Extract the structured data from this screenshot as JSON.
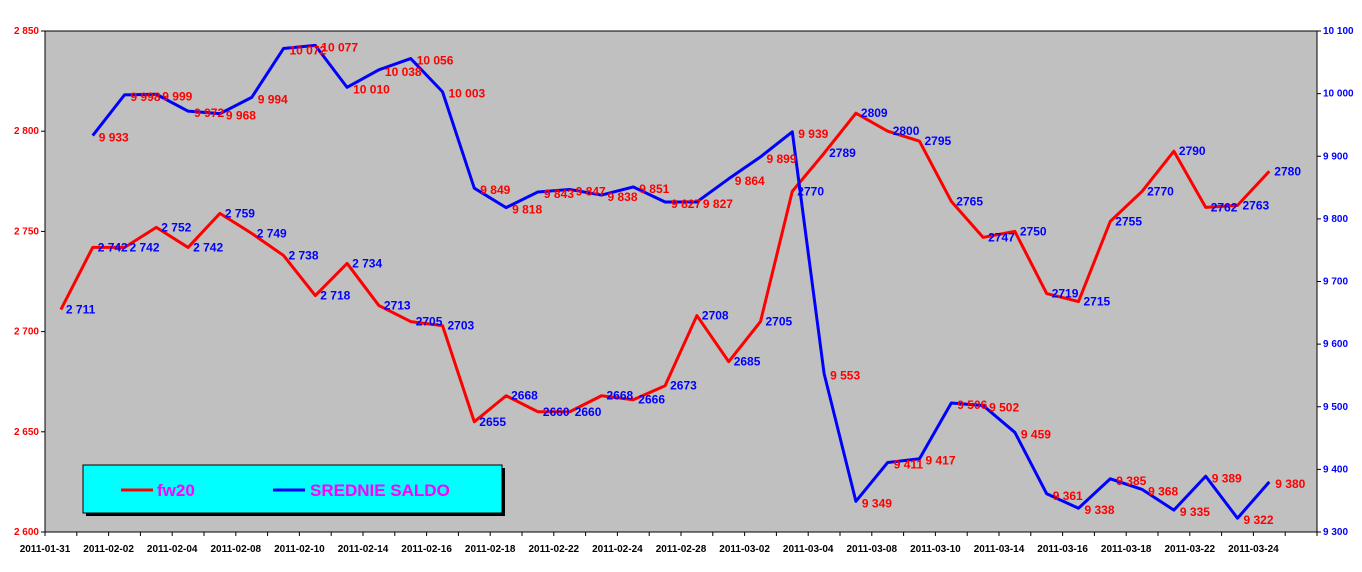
{
  "chart_data": {
    "type": "line",
    "title": "",
    "xlabel": "",
    "ylabel": "",
    "x_tick_labels": [
      "2011-01-31",
      "2011-02-02",
      "2011-02-04",
      "2011-02-08",
      "2011-02-10",
      "2011-02-14",
      "2011-02-16",
      "2011-02-18",
      "2011-02-22",
      "2011-02-24",
      "2011-02-28",
      "2011-03-02",
      "2011-03-04",
      "2011-03-08",
      "2011-03-10",
      "2011-03-14",
      "2011-03-16",
      "2011-03-18",
      "2011-03-22",
      "2011-03-24"
    ],
    "y_left": {
      "min": 2600,
      "max": 2850,
      "step": 50,
      "tick_labels": [
        "2 600",
        "2 650",
        "2 700",
        "2 750",
        "2 800",
        "2 850"
      ]
    },
    "y_right": {
      "min": 9300,
      "max": 10100,
      "step": 100,
      "tick_labels": [
        "9 300",
        "9 400",
        "9 500",
        "9 600",
        "9 700",
        "9 800",
        "9 900",
        "10 000",
        "10 100"
      ]
    },
    "grid": false,
    "legend_position": "bottom-left",
    "series": [
      {
        "name": "fw20",
        "axis": "left",
        "color": "#ff0000",
        "values": [
          2711,
          2742,
          2742,
          2752,
          2742,
          2759,
          2749,
          2738,
          2718,
          2734,
          2713,
          2705,
          2703,
          2655,
          2668,
          2660,
          2660,
          2668,
          2666,
          2673,
          2708,
          2685,
          2705,
          2770,
          2789,
          2809,
          2800,
          2795,
          2765,
          2747,
          2750,
          2719,
          2715,
          2755,
          2770,
          2790,
          2762,
          2763,
          2780
        ],
        "labels": [
          "2 711",
          "2 742",
          "2 742",
          "2 752",
          "2 742",
          "2 759",
          "2 749",
          "2 738",
          "2 718",
          "2 734",
          "2713",
          "2705",
          "2703",
          "2655",
          "2668",
          "2660",
          "2660",
          "2668",
          "2666",
          "2673",
          "2708",
          "2685",
          "2705",
          "2770",
          "2789",
          "2809",
          "2800",
          "2795",
          "2765",
          "2747",
          "2750",
          "2719",
          "2715",
          "2755",
          "2770",
          "2790",
          "2762",
          "2763",
          "2780"
        ]
      },
      {
        "name": "SREDNIE SALDO",
        "axis": "right",
        "color": "#0000ff",
        "values": [
          9933,
          9998,
          9999,
          9972,
          9968,
          9994,
          10072,
          10077,
          10010,
          10038,
          10056,
          10003,
          9849,
          9818,
          9843,
          9847,
          9838,
          9851,
          9827,
          9827,
          9864,
          9899,
          9939,
          9553,
          9349,
          9411,
          9417,
          9506,
          9502,
          9459,
          9361,
          9338,
          9385,
          9368,
          9335,
          9389,
          9322,
          9380
        ],
        "labels": [
          "9 933",
          "9 998",
          "9 999",
          "9 972",
          "9 968",
          "9 994",
          "10 072",
          "10 077",
          "10 010",
          "10 038",
          "10 056",
          "10 003",
          "9 849",
          "9 818",
          "9 843",
          "9 847",
          "9 838",
          "9 851",
          "9 827",
          "9 827",
          "9 864",
          "9 899",
          "9 939",
          "9 553",
          "9 349",
          "9 411",
          "9 417",
          "9 506",
          "9 502",
          "9 459",
          "9 361",
          "9 338",
          "9 385",
          "9 368",
          "9 335",
          "9 389",
          "9 322",
          "9 380"
        ]
      }
    ],
    "legend": {
      "fw20_label": "fw20",
      "saldo_label": "SREDNIE SALDO"
    },
    "colors": {
      "plot_background": "#c0c0c0",
      "legend_background": "#00ffff",
      "legend_text": "#ff00ff",
      "left_axis_text": "#ff0000",
      "right_axis_text": "#0000ff"
    }
  }
}
